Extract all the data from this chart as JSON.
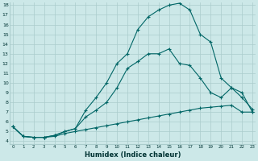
{
  "xlabel": "Humidex (Indice chaleur)",
  "ylabel": "",
  "background_color": "#cce8e8",
  "grid_color": "#aacccc",
  "line_color": "#006666",
  "x_min": 0,
  "x_max": 23,
  "y_min": 4,
  "y_max": 18,
  "line1_x": [
    0,
    1,
    2,
    3,
    4,
    5,
    6,
    7,
    8,
    9,
    10,
    11,
    12,
    13,
    14,
    15,
    16,
    17,
    18,
    19,
    20,
    21,
    22,
    23
  ],
  "line1_y": [
    5.5,
    4.5,
    4.4,
    4.4,
    4.5,
    4.8,
    5.0,
    5.2,
    5.4,
    5.6,
    5.8,
    6.0,
    6.2,
    6.4,
    6.6,
    6.8,
    7.0,
    7.2,
    7.4,
    7.5,
    7.6,
    7.7,
    7.0,
    7.0
  ],
  "line2_x": [
    0,
    1,
    2,
    3,
    4,
    5,
    6,
    7,
    8,
    9,
    10,
    11,
    12,
    13,
    14,
    15,
    16,
    17,
    18,
    19,
    20,
    21,
    22,
    23
  ],
  "line2_y": [
    5.5,
    4.5,
    4.4,
    4.4,
    4.6,
    5.0,
    5.3,
    6.5,
    7.2,
    8.0,
    9.5,
    11.5,
    12.2,
    13.0,
    13.0,
    13.5,
    12.0,
    11.8,
    10.5,
    9.0,
    8.5,
    9.5,
    8.5,
    7.3
  ],
  "line3_x": [
    0,
    1,
    2,
    3,
    4,
    5,
    6,
    7,
    8,
    9,
    10,
    11,
    12,
    13,
    14,
    15,
    16,
    17,
    18,
    19,
    20,
    21,
    22,
    23
  ],
  "line3_y": [
    5.5,
    4.5,
    4.4,
    4.4,
    4.6,
    5.0,
    5.3,
    7.2,
    8.5,
    10.0,
    12.0,
    13.0,
    15.5,
    16.8,
    17.5,
    18.0,
    18.2,
    17.5,
    15.0,
    14.2,
    10.5,
    9.5,
    9.0,
    7.0
  ]
}
